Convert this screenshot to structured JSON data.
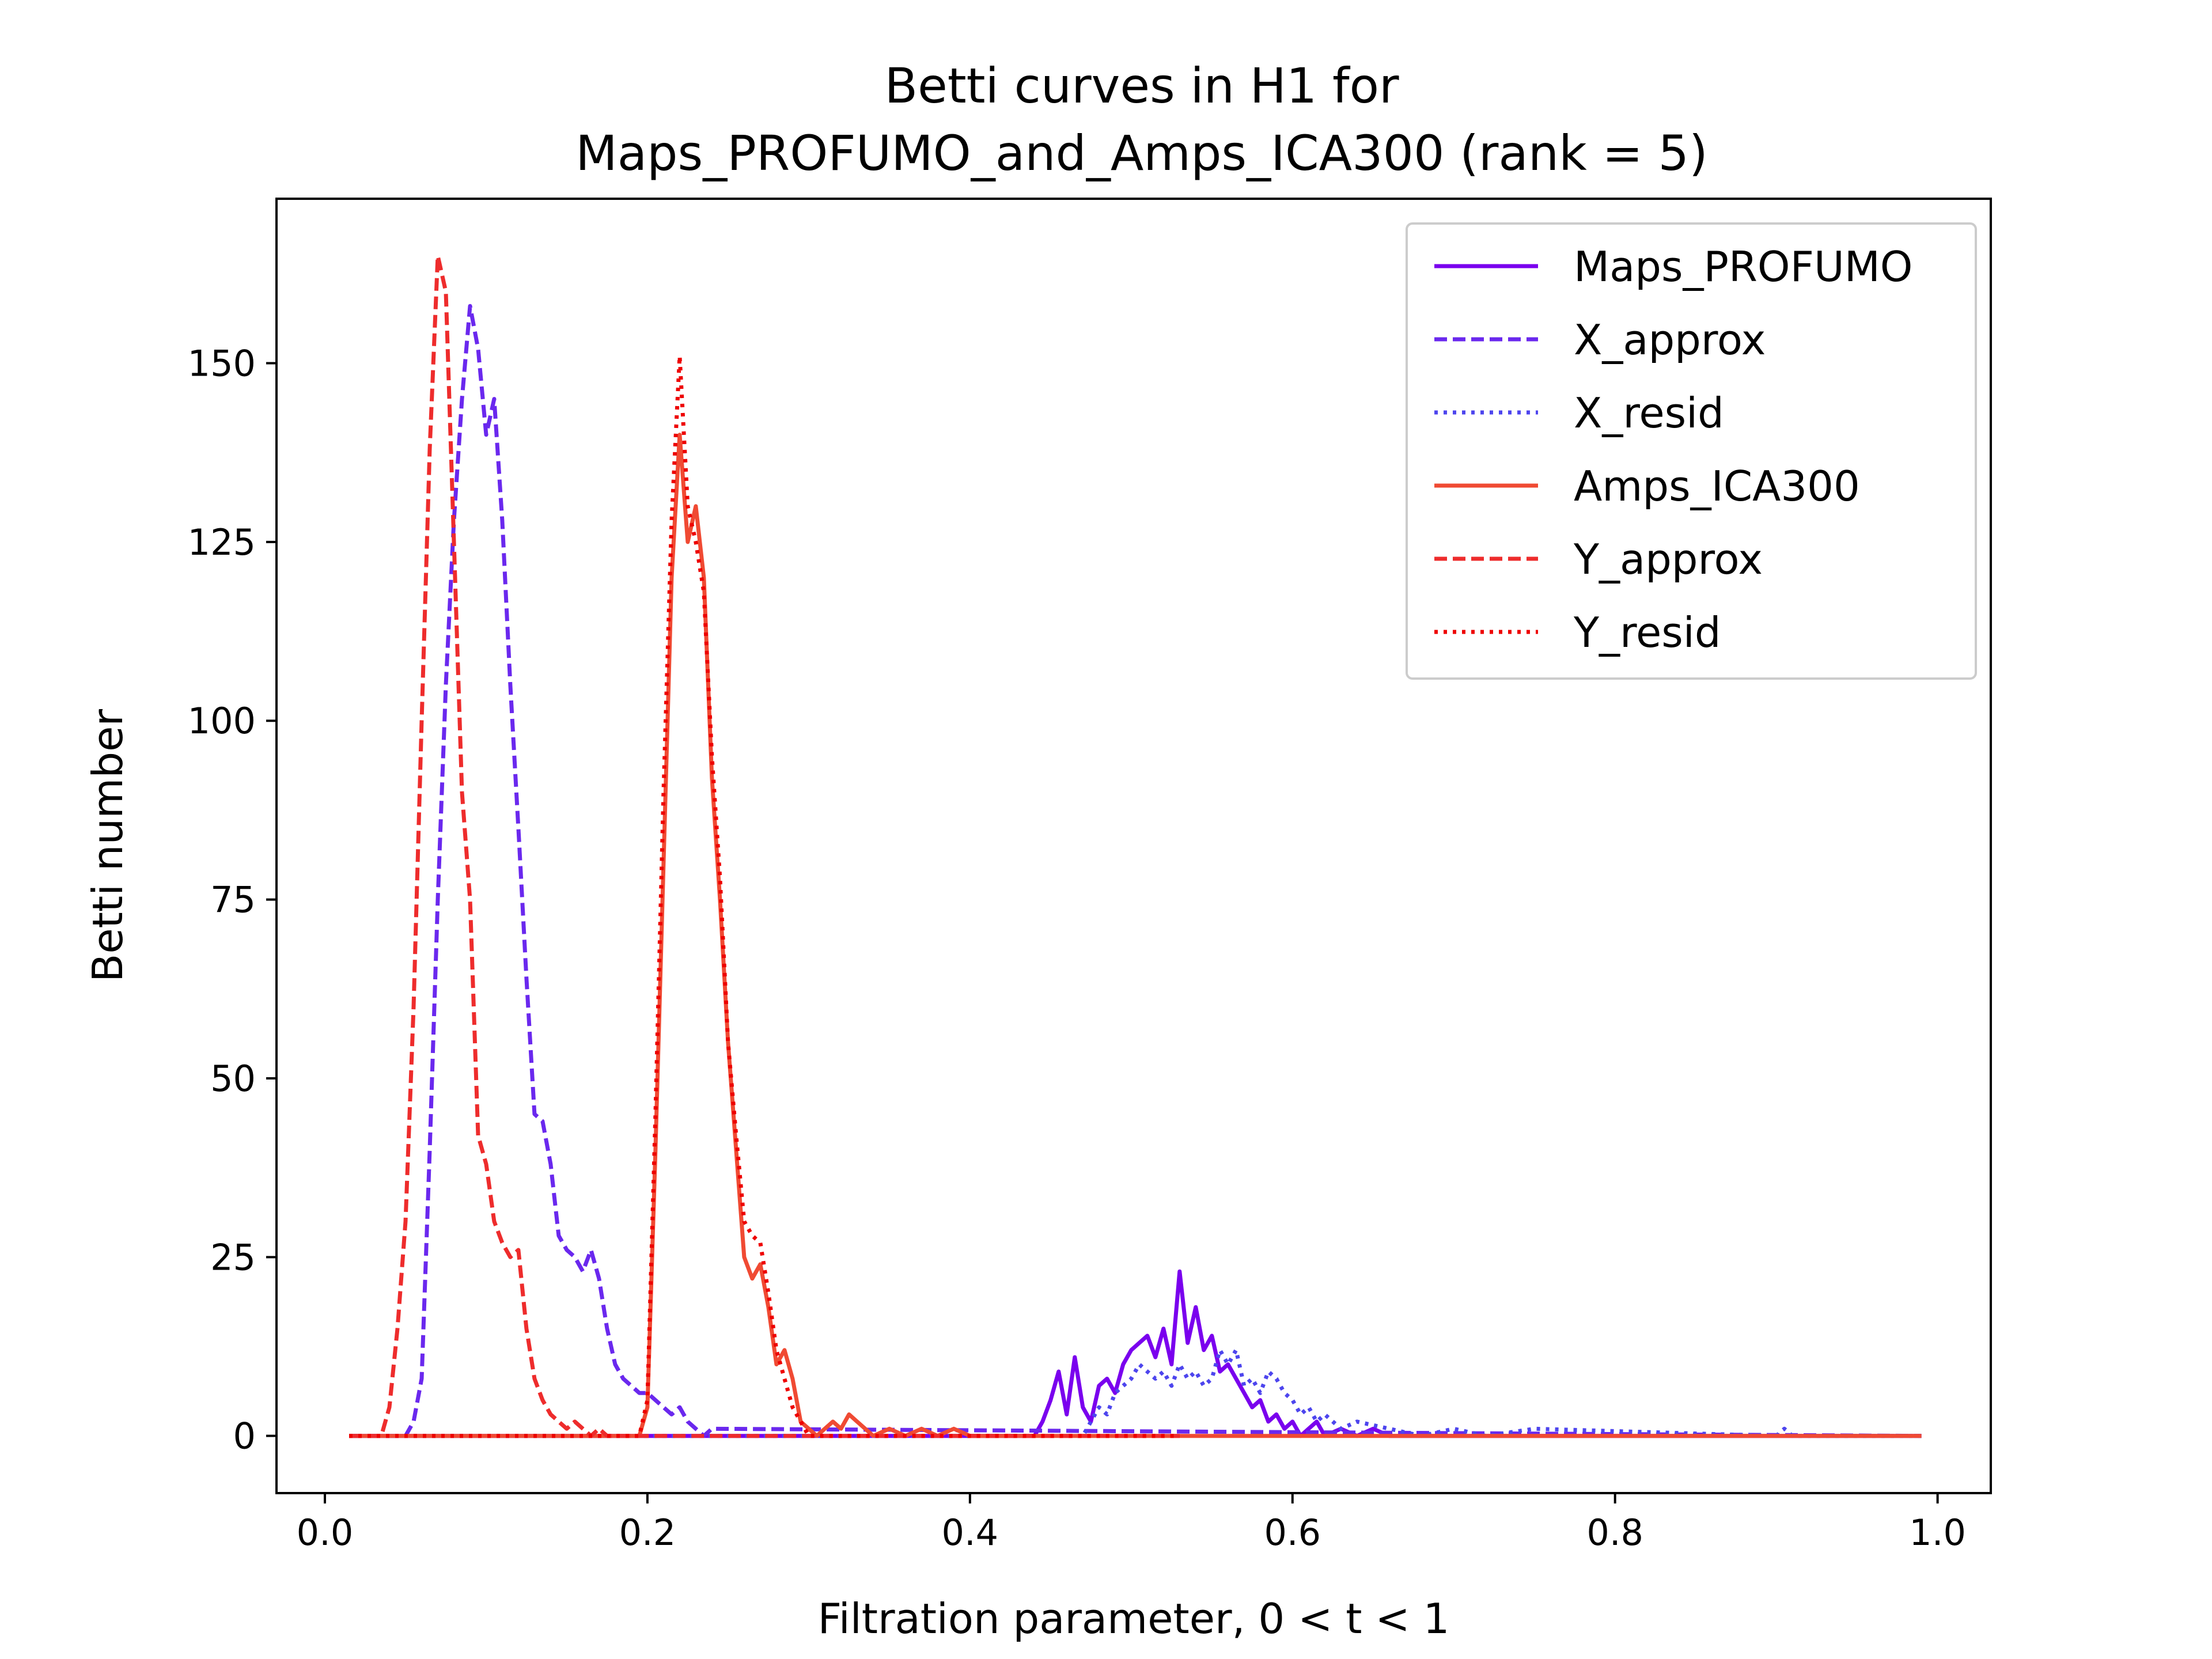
{
  "chart_data": {
    "type": "line",
    "title": "Betti curves in H1 for",
    "subtitle": "Maps_PROFUMO_and_Amps_ICA300 (rank = 5)",
    "xlabel": "Filtration parameter, 0 < t < 1",
    "ylabel": "Betti number",
    "xlim": [
      -0.03,
      1.033
    ],
    "ylim": [
      -8,
      173
    ],
    "xticks": [
      0.0,
      0.2,
      0.4,
      0.6,
      0.8,
      1.0
    ],
    "xtick_labels": [
      "0.0",
      "0.2",
      "0.4",
      "0.6",
      "0.8",
      "1.0"
    ],
    "yticks": [
      0,
      25,
      50,
      75,
      100,
      125,
      150
    ],
    "ytick_labels": [
      "0",
      "25",
      "50",
      "75",
      "100",
      "125",
      "150"
    ],
    "grid": false,
    "legend_position": "top-right",
    "series": [
      {
        "name": "Maps_PROFUMO",
        "color": "#7a00ee",
        "style": "solid",
        "x": [
          0.015,
          0.44,
          0.445,
          0.45,
          0.455,
          0.46,
          0.465,
          0.47,
          0.475,
          0.48,
          0.485,
          0.49,
          0.495,
          0.5,
          0.505,
          0.51,
          0.515,
          0.52,
          0.525,
          0.53,
          0.535,
          0.54,
          0.545,
          0.55,
          0.555,
          0.56,
          0.565,
          0.57,
          0.575,
          0.58,
          0.585,
          0.59,
          0.595,
          0.6,
          0.605,
          0.61,
          0.615,
          0.62,
          0.63,
          0.64,
          0.65,
          0.66,
          0.99
        ],
        "y": [
          0,
          0,
          2,
          5,
          9,
          3,
          11,
          4,
          2,
          7,
          8,
          6,
          10,
          12,
          13,
          14,
          11,
          15,
          10,
          23,
          13,
          18,
          12,
          14,
          9,
          10,
          8,
          6,
          4,
          5,
          2,
          3,
          1,
          2,
          0,
          1,
          2,
          0,
          1,
          0,
          1,
          0,
          0
        ]
      },
      {
        "name": "X_approx",
        "color": "#6a28ee",
        "style": "dashed",
        "x": [
          0.015,
          0.05,
          0.055,
          0.06,
          0.065,
          0.07,
          0.075,
          0.08,
          0.085,
          0.09,
          0.095,
          0.1,
          0.105,
          0.11,
          0.115,
          0.12,
          0.125,
          0.13,
          0.135,
          0.14,
          0.145,
          0.15,
          0.155,
          0.16,
          0.165,
          0.17,
          0.175,
          0.18,
          0.185,
          0.19,
          0.195,
          0.2,
          0.205,
          0.21,
          0.215,
          0.22,
          0.225,
          0.23,
          0.235,
          0.24,
          0.99
        ],
        "y": [
          0,
          0,
          2,
          8,
          40,
          75,
          105,
          128,
          145,
          158,
          152,
          140,
          145,
          128,
          105,
          85,
          64,
          45,
          44,
          38,
          28,
          26,
          25,
          23,
          26,
          22,
          15,
          10,
          8,
          7,
          6,
          6,
          5,
          4,
          3,
          4,
          2,
          1,
          0,
          1,
          0
        ]
      },
      {
        "name": "X_resid",
        "color": "#4d45ee",
        "style": "dotted",
        "x": [
          0.015,
          0.47,
          0.475,
          0.48,
          0.485,
          0.49,
          0.495,
          0.5,
          0.505,
          0.51,
          0.515,
          0.52,
          0.525,
          0.53,
          0.535,
          0.54,
          0.545,
          0.55,
          0.555,
          0.56,
          0.565,
          0.57,
          0.575,
          0.58,
          0.585,
          0.59,
          0.595,
          0.6,
          0.605,
          0.61,
          0.615,
          0.62,
          0.63,
          0.64,
          0.66,
          0.68,
          0.7,
          0.72,
          0.75,
          0.9,
          0.905,
          0.91,
          0.99
        ],
        "y": [
          0,
          0,
          2,
          4,
          3,
          6,
          7,
          8,
          10,
          9,
          8,
          9,
          7,
          10,
          8,
          9,
          7,
          8,
          12,
          10,
          12,
          7,
          8,
          6,
          9,
          8,
          6,
          5,
          3,
          4,
          2,
          3,
          1,
          2,
          1,
          0,
          1,
          0,
          1,
          0,
          1,
          0,
          0
        ]
      },
      {
        "name": "Amps_ICA300",
        "color": "#f04a33",
        "style": "solid",
        "x": [
          0.015,
          0.195,
          0.2,
          0.205,
          0.21,
          0.215,
          0.22,
          0.225,
          0.23,
          0.235,
          0.24,
          0.245,
          0.25,
          0.255,
          0.26,
          0.265,
          0.27,
          0.275,
          0.28,
          0.285,
          0.29,
          0.295,
          0.3,
          0.305,
          0.31,
          0.315,
          0.32,
          0.325,
          0.33,
          0.335,
          0.34,
          0.35,
          0.36,
          0.37,
          0.38,
          0.39,
          0.4,
          0.42,
          0.99
        ],
        "y": [
          0,
          0,
          4,
          40,
          80,
          120,
          140,
          125,
          130,
          120,
          92,
          75,
          55,
          40,
          25,
          22,
          24,
          18,
          10,
          12,
          8,
          2,
          1,
          0,
          1,
          2,
          1,
          3,
          2,
          1,
          0,
          1,
          0,
          1,
          0,
          1,
          0,
          0,
          0
        ]
      },
      {
        "name": "Y_approx",
        "color": "#ee2c2c",
        "style": "dashed",
        "x": [
          0.015,
          0.035,
          0.04,
          0.045,
          0.05,
          0.055,
          0.06,
          0.065,
          0.07,
          0.075,
          0.08,
          0.085,
          0.09,
          0.095,
          0.1,
          0.105,
          0.11,
          0.115,
          0.12,
          0.125,
          0.13,
          0.135,
          0.14,
          0.145,
          0.15,
          0.155,
          0.16,
          0.165,
          0.17,
          0.175,
          0.53
        ],
        "y": [
          0,
          0,
          4,
          15,
          30,
          60,
          100,
          138,
          165,
          160,
          125,
          90,
          75,
          42,
          38,
          30,
          27,
          25,
          26,
          15,
          8,
          5,
          3,
          2,
          1,
          2,
          1,
          0,
          1,
          0,
          0
        ]
      },
      {
        "name": "Y_resid",
        "color": "#ee0000",
        "style": "dotted",
        "x": [
          0.015,
          0.195,
          0.2,
          0.205,
          0.21,
          0.215,
          0.22,
          0.225,
          0.23,
          0.235,
          0.24,
          0.245,
          0.25,
          0.255,
          0.26,
          0.265,
          0.27,
          0.275,
          0.28,
          0.285,
          0.29,
          0.3,
          0.53
        ],
        "y": [
          0,
          0,
          5,
          45,
          90,
          128,
          151,
          130,
          125,
          118,
          95,
          78,
          55,
          42,
          30,
          28,
          27,
          20,
          12,
          8,
          4,
          0,
          0
        ]
      }
    ]
  }
}
